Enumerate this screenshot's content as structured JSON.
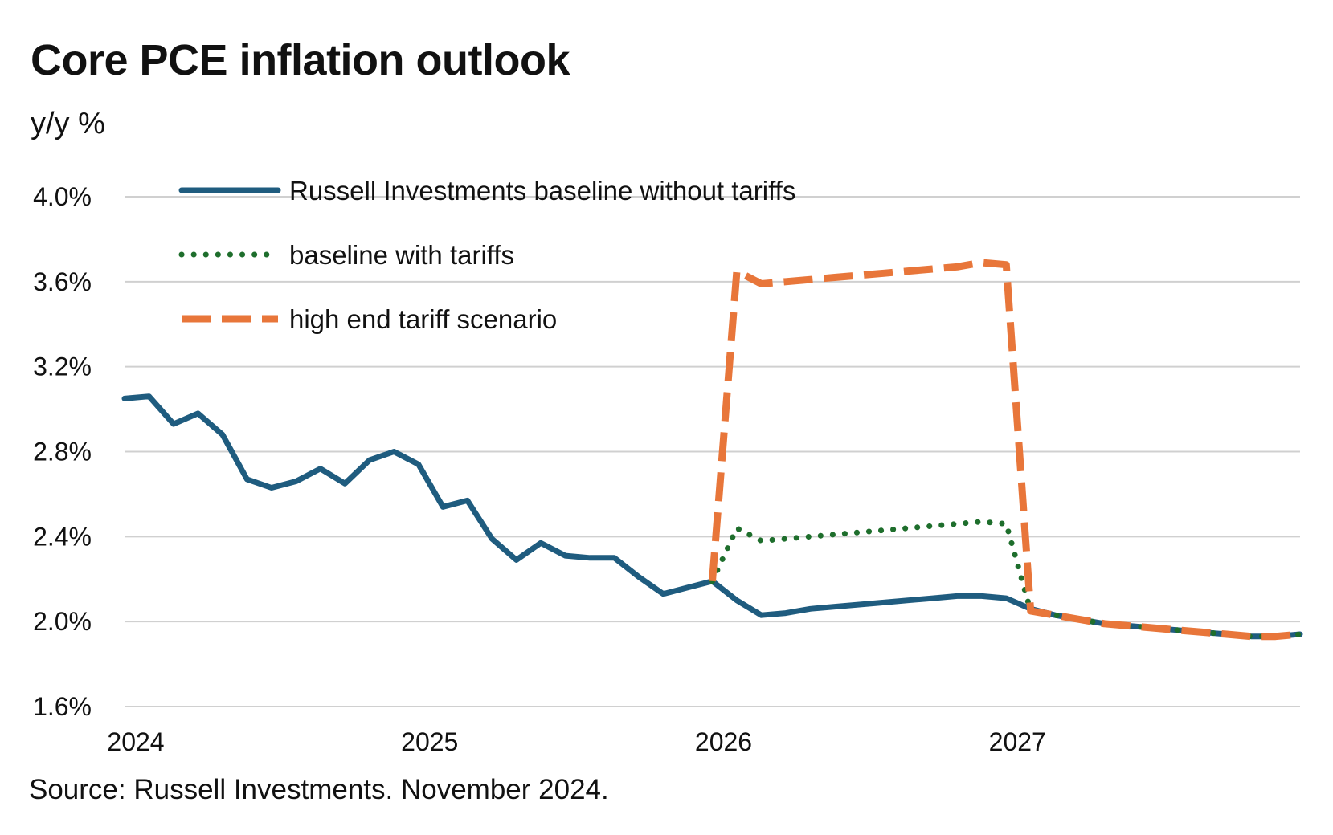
{
  "header": {
    "title": "Core PCE inflation outlook",
    "subtitle": "y/y %"
  },
  "footer": {
    "source": "Source: Russell Investments. November 2024."
  },
  "chart_data": {
    "type": "line",
    "title": "Core PCE inflation outlook",
    "ylabel": "y/y %",
    "xlabel": "",
    "x_start": 2024.0,
    "x_step_months": 1,
    "xlim": [
      2024.0,
      2028.0
    ],
    "ylim": [
      1.6,
      4.0
    ],
    "yticks": [
      1.6,
      2.0,
      2.4,
      2.8,
      3.2,
      3.6,
      4.0
    ],
    "ytick_labels": [
      "1.6%",
      "2.0%",
      "2.4%",
      "2.8%",
      "3.2%",
      "3.6%",
      "4.0%"
    ],
    "xticks": [
      2024,
      2025,
      2026,
      2027
    ],
    "xtick_labels": [
      "2024",
      "2025",
      "2026",
      "2027"
    ],
    "grid": true,
    "legend_position": "top-left",
    "series": [
      {
        "name": "Russell Investments baseline without tariffs",
        "color": "#1f5c7f",
        "style": "solid",
        "x_start": 2024.0,
        "values": [
          3.05,
          3.06,
          2.93,
          2.98,
          2.88,
          2.67,
          2.63,
          2.66,
          2.72,
          2.65,
          2.76,
          2.8,
          2.74,
          2.54,
          2.57,
          2.39,
          2.29,
          2.37,
          2.31,
          2.3,
          2.3,
          2.21,
          2.13,
          2.16,
          2.19,
          2.1,
          2.03,
          2.04,
          2.06,
          2.07,
          2.08,
          2.09,
          2.1,
          2.11,
          2.12,
          2.12,
          2.11,
          2.06,
          2.03,
          2.01,
          1.99,
          1.98,
          1.97,
          1.96,
          1.95,
          1.94,
          1.93,
          1.93,
          1.94
        ]
      },
      {
        "name": "baseline with tariffs",
        "color": "#1e6e2c",
        "style": "dotted",
        "x_start": 2026.0,
        "values": [
          2.19,
          2.44,
          2.38,
          2.39,
          2.4,
          2.41,
          2.42,
          2.43,
          2.44,
          2.45,
          2.46,
          2.47,
          2.46,
          2.05,
          2.03,
          2.01,
          1.99,
          1.98,
          1.97,
          1.96,
          1.95,
          1.94,
          1.93,
          1.93,
          1.94
        ]
      },
      {
        "name": "high end tariff scenario",
        "color": "#e8763a",
        "style": "dashed",
        "x_start": 2026.0,
        "values": [
          2.19,
          3.65,
          3.59,
          3.6,
          3.61,
          3.62,
          3.63,
          3.64,
          3.65,
          3.66,
          3.67,
          3.69,
          3.68,
          2.05,
          2.03,
          2.01,
          1.99,
          1.98,
          1.97,
          1.96,
          1.95,
          1.94,
          1.93,
          1.93,
          1.94
        ]
      }
    ]
  }
}
